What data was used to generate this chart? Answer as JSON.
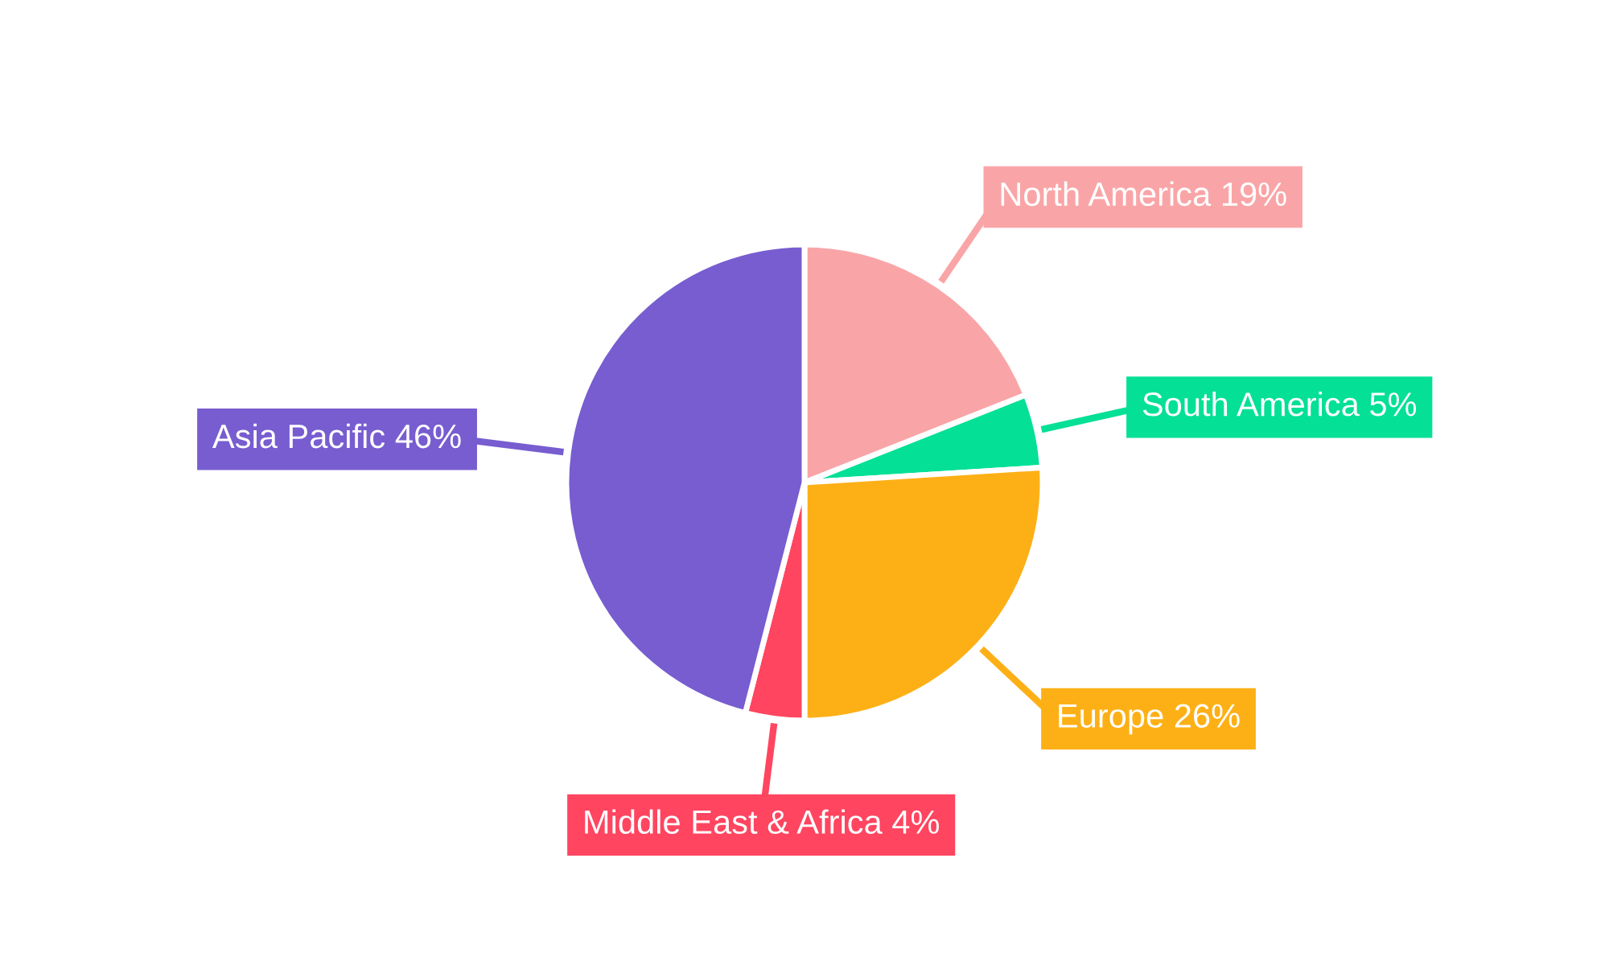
{
  "chart_data": {
    "type": "pie",
    "categories": [
      "North America",
      "South America",
      "Europe",
      "Middle East & Africa",
      "Asia Pacific"
    ],
    "values": [
      19,
      5,
      26,
      4,
      46
    ],
    "value_labels": [
      "19%",
      "5%",
      "26%",
      "4%",
      "46%"
    ],
    "colors": [
      "#f9a5a7",
      "#04e095",
      "#fdb016",
      "#ff4560",
      "#775dd0"
    ]
  }
}
